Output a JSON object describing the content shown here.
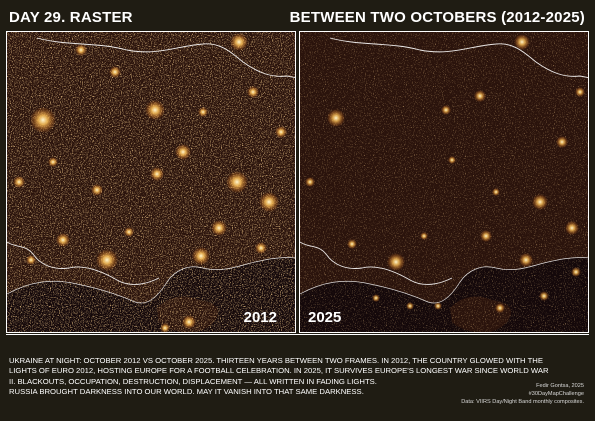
{
  "header": {
    "title_left": "DAY 29. RASTER",
    "title_right": "BETWEEN TWO OCTOBERS (2012-2025)"
  },
  "panels": [
    {
      "year": "2012"
    },
    {
      "year": "2025"
    }
  ],
  "description": {
    "line1": "UKRAINE AT NIGHT: OCTOBER 2012 VS OCTOBER 2025. THIRTEEN YEARS BETWEEN TWO FRAMES. IN 2012, THE COUNTRY GLOWED WITH THE",
    "line2": "LIGHTS OF EURO 2012, HOSTING EUROPE FOR A FOOTBALL CELEBRATION. IN 2025, IT SURVIVES EUROPE'S LONGEST WAR SINCE WORLD WAR",
    "line3": "II. BLACKOUTS, OCCUPATION, DESTRUCTION, DISPLACEMENT — ALL WRITTEN IN FADING LIGHTS.",
    "line4": "RUSSIA BROUGHT DARKNESS INTO OUR WORLD. MAY IT VANISH INTO THAT SAME DARKNESS."
  },
  "credits": {
    "author": "Fedir Gontsa, 2025",
    "hashtag": "#30DayMapChallenge",
    "source": "Data: VIIRS Day/Night Band monthly composites."
  },
  "colors": {
    "background": "#1f1c13",
    "land_night": "#2a130c",
    "sea": "#14080a",
    "light_glow": "#ffb74a",
    "light_core": "#fff4c8",
    "border_line": "#ffffff"
  }
}
